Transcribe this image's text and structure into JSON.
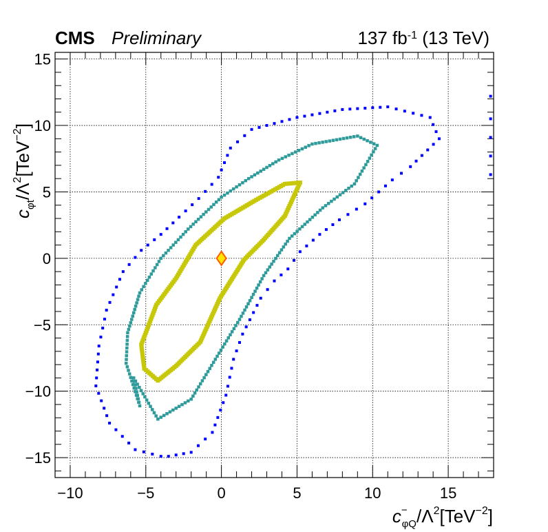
{
  "header": {
    "experiment": "CMS",
    "status": "Preliminary",
    "luminosity": "137 fb",
    "lumi_exponent": "-1",
    "energy": " (13 TeV)"
  },
  "axes": {
    "x": {
      "symbol": "c",
      "superscript": "−",
      "subscript": "φQ",
      "rest": "/Λ",
      "rest_sup": "2",
      "units": "[TeV",
      "units_sup": "−2",
      "units_end": "]"
    },
    "y": {
      "symbol": "c",
      "subscript": "φt",
      "rest": "/Λ",
      "rest_sup": "2",
      "units": "[TeV",
      "units_sup": "−2",
      "units_end": "]"
    }
  },
  "chart_data": {
    "type": "scatter",
    "xlim": [
      -11,
      18
    ],
    "ylim": [
      -16.5,
      15.5
    ],
    "x_ticks": [
      -10,
      -5,
      0,
      5,
      10,
      15
    ],
    "y_ticks": [
      -15,
      -10,
      -5,
      0,
      5,
      10,
      15
    ],
    "x_tick_labels": [
      "−10",
      "−5",
      "0",
      "5",
      "10",
      "15"
    ],
    "y_tick_labels": [
      "−15",
      "−10",
      "−5",
      "0",
      "5",
      "10",
      "15"
    ],
    "grid": true,
    "series": [
      {
        "color": "#0000ff",
        "points": [
          [
            -3.5,
            -14.9
          ],
          [
            -2.0,
            -14.6
          ],
          [
            -0.6,
            -13.1
          ],
          [
            0.3,
            -10.3
          ],
          [
            0.8,
            -7.6
          ],
          [
            1.4,
            -5.7
          ],
          [
            2.6,
            -3.0
          ],
          [
            3.5,
            -1.7
          ],
          [
            4.4,
            -0.8
          ],
          [
            5.2,
            0.5
          ],
          [
            6.5,
            1.8
          ],
          [
            7.8,
            2.9
          ],
          [
            9.5,
            4.1
          ],
          [
            11.3,
            5.9
          ],
          [
            12.5,
            6.9
          ],
          [
            14.4,
            9.0
          ],
          [
            13.8,
            10.6
          ],
          [
            11.0,
            11.4
          ],
          [
            8.0,
            11.2
          ],
          [
            5.0,
            10.6
          ],
          [
            2.0,
            9.7
          ],
          [
            0.6,
            8.3
          ],
          [
            -0.2,
            6.1
          ],
          [
            -1.5,
            4.5
          ],
          [
            -2.8,
            3.1
          ],
          [
            -4.0,
            1.8
          ],
          [
            -5.3,
            0.6
          ],
          [
            -6.5,
            -1.0
          ],
          [
            -7.6,
            -3.9
          ],
          [
            -8.1,
            -6.6
          ],
          [
            -8.3,
            -9.6
          ],
          [
            -7.4,
            -12.4
          ],
          [
            -5.7,
            -14.4
          ],
          [
            -4.0,
            -14.9
          ],
          [
            17.8,
            6.3
          ],
          [
            17.8,
            7.7
          ],
          [
            17.8,
            9.1
          ],
          [
            17.8,
            10.5
          ],
          [
            17.8,
            12.2
          ]
        ]
      },
      {
        "color": "#2e9a9a",
        "points": [
          [
            -5.8,
            -9.0
          ],
          [
            -4.2,
            -12.1
          ],
          [
            -2.0,
            -10.6
          ],
          [
            -0.4,
            -7.6
          ],
          [
            1.2,
            -4.6
          ],
          [
            2.8,
            -1.3
          ],
          [
            4.5,
            1.5
          ],
          [
            6.7,
            3.8
          ],
          [
            8.8,
            5.6
          ],
          [
            10.3,
            8.5
          ],
          [
            9.0,
            9.2
          ],
          [
            6.0,
            8.6
          ],
          [
            3.8,
            7.4
          ],
          [
            1.8,
            6.0
          ],
          [
            0.0,
            4.6
          ],
          [
            -2.2,
            2.2
          ],
          [
            -4.0,
            0.0
          ],
          [
            -5.4,
            -2.6
          ],
          [
            -6.2,
            -5.6
          ],
          [
            -6.3,
            -7.9
          ],
          [
            -5.4,
            -11.1
          ]
        ]
      },
      {
        "color": "#c8c80a",
        "points": [
          [
            -4.2,
            -9.2
          ],
          [
            -3.0,
            -8.1
          ],
          [
            -1.4,
            -6.3
          ],
          [
            -0.1,
            -3.0
          ],
          [
            1.5,
            -0.1
          ],
          [
            2.8,
            1.4
          ],
          [
            4.2,
            3.2
          ],
          [
            5.2,
            5.7
          ],
          [
            4.2,
            5.6
          ],
          [
            2.3,
            4.4
          ],
          [
            0.2,
            3.0
          ],
          [
            -1.7,
            1.0
          ],
          [
            -3.0,
            -1.5
          ],
          [
            -4.3,
            -3.5
          ],
          [
            -5.3,
            -6.5
          ],
          [
            -5.1,
            -8.3
          ]
        ]
      }
    ],
    "best_fit": {
      "x": 0,
      "y": 0,
      "fill": "#ffe600",
      "stroke": "#ff5a00"
    }
  }
}
